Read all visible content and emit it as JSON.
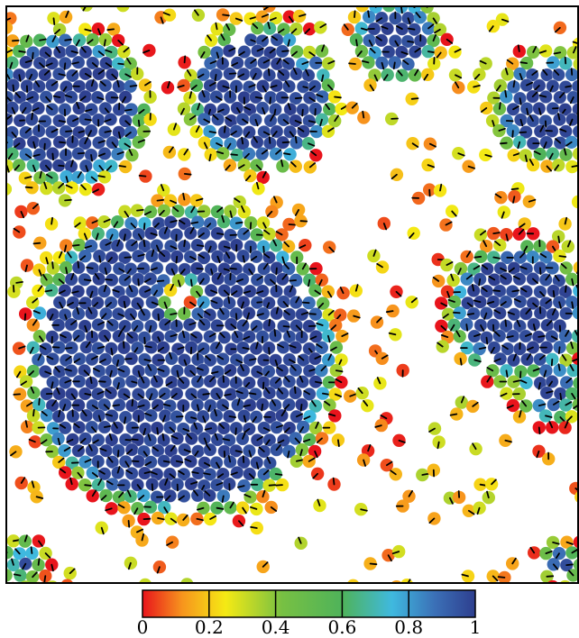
{
  "colorbar": {
    "ticks": [
      {
        "value": 0,
        "label": "0"
      },
      {
        "value": 0.2,
        "label": "0.2"
      },
      {
        "value": 0.4,
        "label": "0.4"
      },
      {
        "value": 0.6,
        "label": "0.6"
      },
      {
        "value": 0.8,
        "label": "0.8"
      },
      {
        "value": 1,
        "label": "1"
      }
    ],
    "stops": [
      {
        "value": 0.0,
        "color": "#e8141c"
      },
      {
        "value": 0.12,
        "color": "#f7951d"
      },
      {
        "value": 0.25,
        "color": "#f5ea14"
      },
      {
        "value": 0.42,
        "color": "#77c043"
      },
      {
        "value": 0.6,
        "color": "#4fb35a"
      },
      {
        "value": 0.75,
        "color": "#3fb9df"
      },
      {
        "value": 0.88,
        "color": "#3b6fb6"
      },
      {
        "value": 1.0,
        "color": "#2e3f8f"
      }
    ]
  },
  "palette": {
    "frame": "#000000",
    "background": "#ffffff",
    "particle_line_dense": "#111111",
    "particle_line_sparse": "#000000"
  }
}
